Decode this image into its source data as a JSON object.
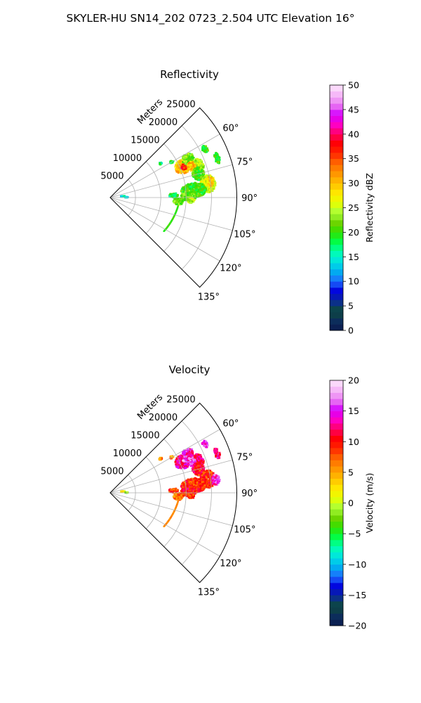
{
  "figure": {
    "title": "SKYLER-HU  SN14_202  0723_2.504 UTC Elevation 16°"
  },
  "chart_data": [
    {
      "type": "heatmap",
      "subtype": "polar-sector",
      "title": "Reflectivity",
      "range_label": "Meters",
      "r_max": 25000,
      "r_ticks": [
        "5000",
        "10000",
        "15000",
        "20000",
        "25000"
      ],
      "r_tick_values": [
        5000,
        10000,
        15000,
        20000,
        25000
      ],
      "theta_range_deg": [
        45,
        135
      ],
      "theta_ticks": [
        "60°",
        "75°",
        "90°",
        "105°",
        "120°",
        "135°"
      ],
      "theta_tick_values": [
        60,
        75,
        90,
        105,
        120,
        135
      ],
      "grid": true,
      "colorbar": {
        "label": "Reflectivity dBZ",
        "min": 0,
        "max": 50,
        "ticks": [
          "0",
          "5",
          "10",
          "15",
          "20",
          "25",
          "30",
          "35",
          "40",
          "45",
          "50"
        ],
        "tick_values": [
          0,
          5,
          10,
          15,
          20,
          25,
          30,
          35,
          40,
          45,
          50
        ]
      },
      "echoes": [
        {
          "az": 67,
          "r": 15500,
          "dr": 1500,
          "daz": 5,
          "value": 30
        },
        {
          "az": 67.5,
          "r": 15800,
          "dr": 600,
          "daz": 2,
          "value": 37
        },
        {
          "az": 64,
          "r": 17200,
          "dr": 1200,
          "daz": 4,
          "value": 22
        },
        {
          "az": 70,
          "r": 18500,
          "dr": 1100,
          "daz": 4,
          "value": 24
        },
        {
          "az": 69,
          "r": 17200,
          "dr": 800,
          "daz": 3,
          "value": 30
        },
        {
          "az": 75,
          "r": 18000,
          "dr": 1200,
          "daz": 4,
          "value": 20
        },
        {
          "az": 82,
          "r": 19500,
          "dr": 1500,
          "daz": 5,
          "value": 25
        },
        {
          "az": 81,
          "r": 20000,
          "dr": 700,
          "daz": 3,
          "value": 29
        },
        {
          "az": 85,
          "r": 16500,
          "dr": 2500,
          "daz": 5,
          "value": 20
        },
        {
          "az": 88,
          "r": 12500,
          "dr": 900,
          "daz": 2,
          "value": 18
        },
        {
          "az": 89,
          "r": 15500,
          "dr": 1500,
          "daz": 4,
          "value": 22
        },
        {
          "az": 93,
          "r": 13500,
          "dr": 1000,
          "daz": 3,
          "value": 22
        },
        {
          "az": 92,
          "r": 16000,
          "dr": 700,
          "daz": 2,
          "value": 25
        },
        {
          "az": 63,
          "r": 21000,
          "dr": 600,
          "daz": 2,
          "value": 20
        },
        {
          "az": 70,
          "r": 22500,
          "dr": 500,
          "daz": 3,
          "value": 20
        },
        {
          "az": 60,
          "r": 14000,
          "dr": 400,
          "daz": 1,
          "value": 20
        },
        {
          "az": 56,
          "r": 12000,
          "dr": 300,
          "daz": 1,
          "value": 17
        },
        {
          "az": 84,
          "r": 2500,
          "dr": 400,
          "daz": 1,
          "value": 15
        },
        {
          "az": 89,
          "r": 3200,
          "dr": 300,
          "daz": 1,
          "value": 13
        }
      ],
      "clutter_arc": {
        "r_start": 13500,
        "r_end": 12500,
        "az_start": 97,
        "az_end": 122,
        "value": 20
      }
    },
    {
      "type": "heatmap",
      "subtype": "polar-sector",
      "title": "Velocity",
      "range_label": "Meters",
      "r_max": 25000,
      "r_ticks": [
        "5000",
        "10000",
        "15000",
        "20000",
        "25000"
      ],
      "r_tick_values": [
        5000,
        10000,
        15000,
        20000,
        25000
      ],
      "theta_range_deg": [
        45,
        135
      ],
      "theta_ticks": [
        "60°",
        "75°",
        "90°",
        "105°",
        "120°",
        "135°"
      ],
      "theta_tick_values": [
        60,
        75,
        90,
        105,
        120,
        135
      ],
      "grid": true,
      "colorbar": {
        "label": "Velocity (m/s)",
        "min": -20,
        "max": 20,
        "ticks": [
          "−20",
          "−15",
          "−10",
          "−5",
          "0",
          "5",
          "10",
          "15",
          "20"
        ],
        "tick_values": [
          -20,
          -15,
          -10,
          -5,
          0,
          5,
          10,
          15,
          20
        ]
      },
      "echoes": [
        {
          "az": 67,
          "r": 15500,
          "dr": 1500,
          "daz": 5,
          "value": 13
        },
        {
          "az": 66,
          "r": 16500,
          "dr": 800,
          "daz": 2,
          "value": 17
        },
        {
          "az": 64,
          "r": 17200,
          "dr": 1200,
          "daz": 4,
          "value": 14
        },
        {
          "az": 70,
          "r": 18500,
          "dr": 1100,
          "daz": 4,
          "value": 12
        },
        {
          "az": 69,
          "r": 17200,
          "dr": 800,
          "daz": 3,
          "value": 15
        },
        {
          "az": 75,
          "r": 18000,
          "dr": 1200,
          "daz": 4,
          "value": 10
        },
        {
          "az": 82,
          "r": 19500,
          "dr": 1500,
          "daz": 5,
          "value": 9
        },
        {
          "az": 83,
          "r": 21000,
          "dr": 800,
          "daz": 3,
          "value": 15
        },
        {
          "az": 85,
          "r": 16500,
          "dr": 2500,
          "daz": 5,
          "value": 9
        },
        {
          "az": 88,
          "r": 12500,
          "dr": 900,
          "daz": 2,
          "value": 9
        },
        {
          "az": 89,
          "r": 15500,
          "dr": 1500,
          "daz": 4,
          "value": 10
        },
        {
          "az": 93,
          "r": 13500,
          "dr": 1000,
          "daz": 3,
          "value": 7
        },
        {
          "az": 92,
          "r": 16000,
          "dr": 700,
          "daz": 2,
          "value": 9
        },
        {
          "az": 63,
          "r": 21000,
          "dr": 600,
          "daz": 2,
          "value": 15
        },
        {
          "az": 70,
          "r": 22500,
          "dr": 500,
          "daz": 3,
          "value": 13
        },
        {
          "az": 60,
          "r": 14000,
          "dr": 400,
          "daz": 1,
          "value": 6
        },
        {
          "az": 56,
          "r": 12000,
          "dr": 300,
          "daz": 1,
          "value": 6
        },
        {
          "az": 84,
          "r": 2500,
          "dr": 400,
          "daz": 1,
          "value": 1
        },
        {
          "az": 89,
          "r": 3200,
          "dr": 300,
          "daz": 1,
          "value": -2
        }
      ],
      "clutter_arc": {
        "r_start": 13500,
        "r_end": 12500,
        "az_start": 97,
        "az_end": 122,
        "value": 6
      }
    }
  ]
}
